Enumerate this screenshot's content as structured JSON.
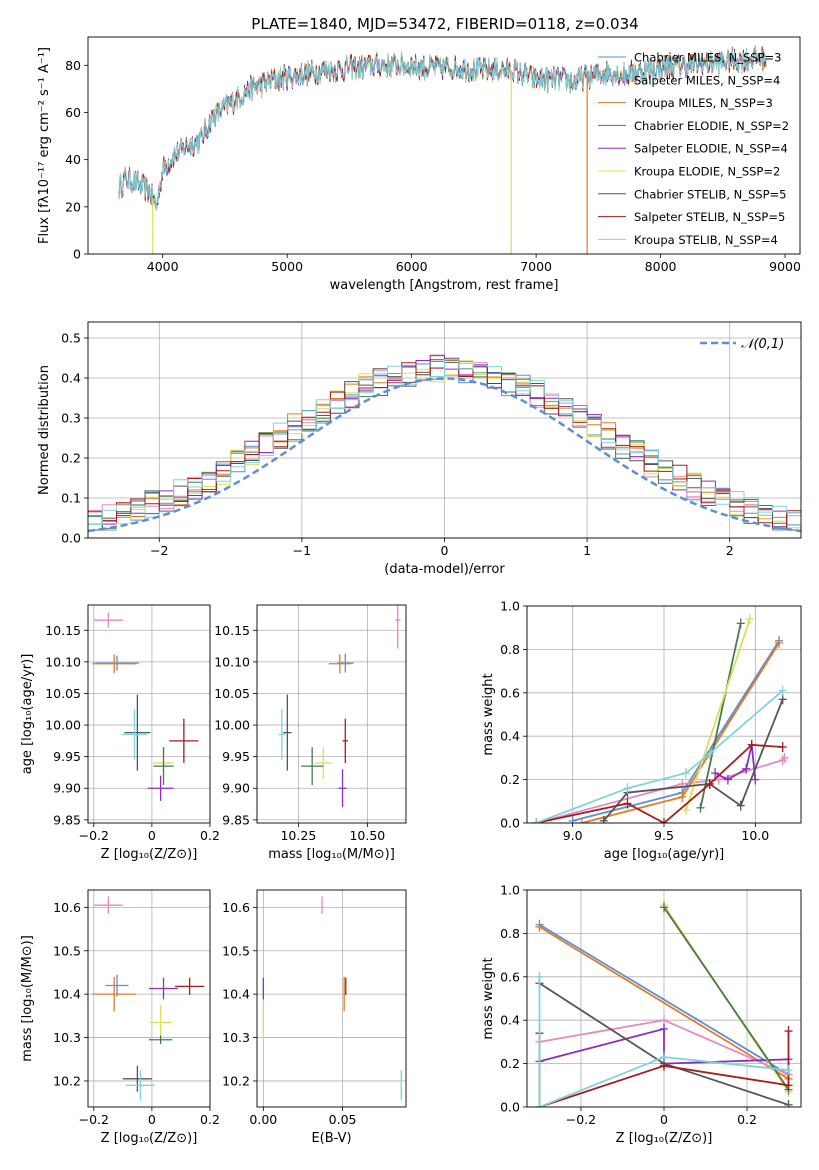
{
  "figure_title": "PLATE=1840, MJD=53472, FIBERID=0118, z=0.034",
  "colors": {
    "chabrier_miles": "#5b8fd6",
    "salpeter_miles": "#e58bbf",
    "kroupa_miles": "#c97a20",
    "chabrier_elodie": "#4a7a4a",
    "salpeter_elodie": "#8b2fbf",
    "kroupa_elodie": "#d8e055",
    "chabrier_stelib": "#555555",
    "salpeter_stelib": "#a51d1d",
    "kroupa_stelib": "#7fd4da",
    "dark_orange": "#e37b26",
    "gauss": "#5b8fd6"
  },
  "chart_data": [
    {
      "type": "line",
      "id": "spectrum",
      "title": "PLATE=1840, MJD=53472, FIBERID=0118, z=0.034",
      "xlabel": "wavelength [Angstrom, rest frame]",
      "ylabel": "Flux [fλ10⁻¹⁷ erg cm⁻² s⁻¹ A⁻¹]",
      "xlim": [
        3400,
        9120
      ],
      "ylim": [
        0,
        92
      ],
      "xticks": [
        4000,
        5000,
        6000,
        7000,
        8000,
        9000
      ],
      "yticks": [
        0,
        20,
        40,
        60,
        80
      ],
      "grid": false,
      "legend": "top-right",
      "legend_entries": [
        "Chabrier MILES, N_SSP=3",
        "Salpeter MILES, N_SSP=4",
        "Kroupa MILES, N_SSP=3",
        "Chabrier ELODIE, N_SSP=2",
        "Salpeter ELODIE, N_SSP=4",
        "Kroupa ELODIE, N_SSP=2",
        "Chabrier STELIB, N_SSP=5",
        "Salpeter STELIB, N_SSP=5",
        "Kroupa STELIB, N_SSP=4"
      ],
      "continuum": {
        "x": [
          3650,
          3700,
          3800,
          3900,
          3950,
          4000,
          4100,
          4200,
          4300,
          4400,
          4500,
          4600,
          4700,
          4800,
          4900,
          5000,
          5100,
          5200,
          5300,
          5400,
          5500,
          5600,
          5700,
          5800,
          5900,
          6000,
          6100,
          6200,
          6300,
          6400,
          6500,
          6600,
          6700,
          6800,
          6900,
          7000,
          7100,
          7200,
          7300,
          7400,
          7500,
          7600,
          7700,
          7800,
          7900,
          8000,
          8200,
          8400,
          8600,
          8800
        ],
        "y": [
          28,
          32,
          30,
          26,
          20,
          36,
          42,
          46,
          48,
          58,
          62,
          66,
          70,
          72,
          74,
          75,
          76,
          77,
          78,
          78,
          79,
          79,
          80,
          80,
          80,
          80,
          79,
          79,
          79,
          79,
          78,
          78,
          78,
          78,
          76,
          74,
          74,
          74,
          73,
          75,
          76,
          77,
          76,
          77,
          78,
          79,
          80,
          81,
          82,
          83
        ]
      },
      "spectrum_drops": [
        {
          "series": "Kroupa ELODIE, N_SSP=2",
          "x": 3920,
          "to": 0
        },
        {
          "series": "Kroupa ELODIE, N_SSP=2",
          "x": 6800,
          "to": 0
        },
        {
          "series": "Kroupa MILES, N_SSP=3",
          "x": 7410,
          "to": 0
        }
      ]
    },
    {
      "type": "step",
      "id": "residuals",
      "xlabel": "(data-model)/error",
      "ylabel": "Normed distribution",
      "xlim": [
        -2.5,
        2.5
      ],
      "ylim": [
        0,
        0.54
      ],
      "xticks": [
        -2,
        -1,
        0,
        1,
        2
      ],
      "yticks": [
        0.0,
        0.1,
        0.2,
        0.3,
        0.4,
        0.5
      ],
      "grid": true,
      "legend": "top-right",
      "reference_curve": {
        "name": "𝒩(0,1)",
        "mean": 0,
        "sigma": 1
      },
      "bin_width": 0.1
    },
    {
      "type": "scatter",
      "id": "age_vs_Z",
      "xlabel": "Z [log₁₀(Z/Z⊙)]",
      "ylabel": "age  [log₁₀(age/yr)]",
      "xlim": [
        -0.22,
        0.2
      ],
      "ylim": [
        9.845,
        10.19
      ],
      "xticks": [
        -0.2,
        0.0,
        0.2
      ],
      "yticks": [
        9.85,
        9.9,
        9.95,
        10.0,
        10.05,
        10.1,
        10.15
      ],
      "grid": true,
      "points": [
        {
          "c": "salpeter_miles",
          "x": -0.15,
          "xerr": 0.05,
          "y": 10.166,
          "yerr": 0.012
        },
        {
          "c": "chabrier_miles",
          "x": -0.12,
          "xerr": 0.075,
          "y": 10.098,
          "yerr": 0.012
        },
        {
          "c": "dark_orange",
          "x": -0.13,
          "xerr": 0.075,
          "y": 10.097,
          "yerr": 0.015
        },
        {
          "c": "chabrier_stelib",
          "x": -0.05,
          "xerr": 0.045,
          "y": 9.988,
          "yerr": 0.06
        },
        {
          "c": "kroupa_stelib",
          "x": -0.06,
          "xerr": 0.045,
          "y": 9.985,
          "yerr": 0.04
        },
        {
          "c": "salpeter_stelib",
          "x": 0.11,
          "xerr": 0.05,
          "y": 9.975,
          "yerr": 0.035
        },
        {
          "c": "kroupa_elodie",
          "x": 0.04,
          "xerr": 0.035,
          "y": 9.94,
          "yerr": 0.025
        },
        {
          "c": "salpeter_elodie",
          "x": 0.03,
          "xerr": 0.045,
          "y": 9.9,
          "yerr": 0.02
        },
        {
          "c": "chabrier_elodie",
          "x": 0.04,
          "xerr": 0.035,
          "y": 9.935,
          "yerr": 0.03
        }
      ]
    },
    {
      "type": "scatter",
      "id": "age_vs_mass",
      "xlabel": "mass [log₁₀(M/M⊙)]",
      "ylabel": "",
      "xlim": [
        10.1,
        10.64
      ],
      "ylim": [
        9.845,
        10.19
      ],
      "xticks": [
        10.25,
        10.5
      ],
      "yticks": [
        9.85,
        9.9,
        9.95,
        10.0,
        10.05,
        10.1,
        10.15
      ],
      "grid": true,
      "points": [
        {
          "c": "salpeter_miles",
          "x": 10.61,
          "xerr": 0.01,
          "y": 10.166,
          "yerr": 0.045
        },
        {
          "c": "chabrier_miles",
          "x": 10.42,
          "xerr": 0.03,
          "y": 10.098,
          "yerr": 0.015
        },
        {
          "c": "dark_orange",
          "x": 10.4,
          "xerr": 0.04,
          "y": 10.097,
          "yerr": 0.015
        },
        {
          "c": "chabrier_stelib",
          "x": 10.21,
          "xerr": 0.015,
          "y": 9.988,
          "yerr": 0.06
        },
        {
          "c": "kroupa_stelib",
          "x": 10.19,
          "xerr": 0.012,
          "y": 9.985,
          "yerr": 0.04
        },
        {
          "c": "salpeter_stelib",
          "x": 10.42,
          "xerr": 0.01,
          "y": 9.975,
          "yerr": 0.035
        },
        {
          "c": "kroupa_elodie",
          "x": 10.34,
          "xerr": 0.03,
          "y": 9.94,
          "yerr": 0.025
        },
        {
          "c": "salpeter_elodie",
          "x": 10.41,
          "xerr": 0.015,
          "y": 9.9,
          "yerr": 0.03
        },
        {
          "c": "chabrier_elodie",
          "x": 10.3,
          "xerr": 0.04,
          "y": 9.935,
          "yerr": 0.03
        }
      ]
    },
    {
      "type": "line",
      "id": "mass_weight_vs_age",
      "xlabel": "age  [log₁₀(age/yr)]",
      "ylabel": "mass weight",
      "xlim": [
        8.75,
        10.25
      ],
      "ylim": [
        0,
        1.0
      ],
      "xticks": [
        9.0,
        9.5,
        10.0
      ],
      "yticks": [
        0.0,
        0.2,
        0.4,
        0.6,
        0.8,
        1.0
      ],
      "grid": true,
      "series": [
        {
          "c": "chabrier_miles",
          "x": [
            9.0,
            9.6,
            10.13
          ],
          "y": [
            0.01,
            0.14,
            0.84
          ]
        },
        {
          "c": "salpeter_miles",
          "x": [
            8.8,
            9.6,
            9.8,
            10.15,
            10.16
          ],
          "y": [
            0.0,
            0.18,
            0.2,
            0.29,
            0.3
          ]
        },
        {
          "c": "dark_orange",
          "x": [
            9.05,
            9.6,
            10.13
          ],
          "y": [
            0.0,
            0.12,
            0.83
          ]
        },
        {
          "c": "chabrier_elodie",
          "x": [
            9.7,
            9.92
          ],
          "y": [
            0.07,
            0.92
          ]
        },
        {
          "c": "salpeter_elodie",
          "x": [
            9.78,
            9.85,
            9.95,
            9.98,
            10.0
          ],
          "y": [
            0.23,
            0.2,
            0.25,
            0.36,
            0.2
          ]
        },
        {
          "c": "kroupa_elodie",
          "x": [
            9.62,
            9.97
          ],
          "y": [
            0.06,
            0.94
          ]
        },
        {
          "c": "chabrier_stelib",
          "x": [
            9.17,
            9.3,
            9.75,
            9.92,
            10.15
          ],
          "y": [
            0.01,
            0.14,
            0.18,
            0.08,
            0.57
          ]
        },
        {
          "c": "salpeter_stelib",
          "x": [
            8.8,
            9.3,
            9.5,
            9.75,
            9.98,
            10.15
          ],
          "y": [
            0.0,
            0.09,
            0.0,
            0.18,
            0.36,
            0.35
          ]
        },
        {
          "c": "kroupa_stelib",
          "x": [
            8.8,
            9.3,
            9.62,
            9.75,
            10.15
          ],
          "y": [
            0.0,
            0.16,
            0.23,
            0.32,
            0.61
          ]
        }
      ]
    },
    {
      "type": "scatter",
      "id": "mass_vs_Z",
      "xlabel": "Z [log₁₀(Z/Z⊙)]",
      "ylabel": "mass [log₁₀(M/M⊙)]",
      "xlim": [
        -0.22,
        0.2
      ],
      "ylim": [
        10.14,
        10.64
      ],
      "xticks": [
        -0.2,
        0.0,
        0.2
      ],
      "yticks": [
        10.2,
        10.3,
        10.4,
        10.5,
        10.6
      ],
      "grid": true,
      "points": [
        {
          "c": "salpeter_miles",
          "x": -0.15,
          "xerr": 0.05,
          "y": 10.605,
          "yerr": 0.02
        },
        {
          "c": "chabrier_miles",
          "x": -0.12,
          "xerr": 0.04,
          "y": 10.42,
          "yerr": 0.025
        },
        {
          "c": "dark_orange",
          "x": -0.13,
          "xerr": 0.075,
          "y": 10.4,
          "yerr": 0.04
        },
        {
          "c": "salpeter_elodie",
          "x": 0.04,
          "xerr": 0.05,
          "y": 10.413,
          "yerr": 0.025
        },
        {
          "c": "salpeter_stelib",
          "x": 0.13,
          "xerr": 0.05,
          "y": 10.418,
          "yerr": 0.02
        },
        {
          "c": "kroupa_elodie",
          "x": 0.03,
          "xerr": 0.04,
          "y": 10.335,
          "yerr": 0.04
        },
        {
          "c": "chabrier_elodie",
          "x": 0.03,
          "xerr": 0.04,
          "y": 10.295,
          "yerr": 0.01
        },
        {
          "c": "chabrier_stelib",
          "x": -0.05,
          "xerr": 0.05,
          "y": 10.205,
          "yerr": 0.03
        },
        {
          "c": "kroupa_stelib",
          "x": -0.04,
          "xerr": 0.05,
          "y": 10.19,
          "yerr": 0.035
        }
      ]
    },
    {
      "type": "scatter",
      "id": "mass_vs_ebv",
      "xlabel": "E(B-V)",
      "ylabel": "",
      "xlim": [
        -0.004,
        0.09
      ],
      "ylim": [
        10.14,
        10.64
      ],
      "xticks": [
        0.0,
        0.05
      ],
      "yticks": [
        10.2,
        10.3,
        10.4,
        10.5,
        10.6
      ],
      "grid": true,
      "points": [
        {
          "c": "salpeter_miles",
          "x": 0.037,
          "xerr": 0.0,
          "y": 10.605,
          "yerr": 0.02
        },
        {
          "c": "salpeter_elodie",
          "x": 0.0,
          "xerr": 0.0,
          "y": 10.413,
          "yerr": 0.025
        },
        {
          "c": "dark_orange",
          "x": 0.051,
          "xerr": 0.0,
          "y": 10.4,
          "yerr": 0.04
        },
        {
          "c": "salpeter_stelib",
          "x": 0.052,
          "xerr": 0.0,
          "y": 10.418,
          "yerr": 0.02
        },
        {
          "c": "kroupa_elodie",
          "x": 0.0,
          "xerr": 0.0,
          "y": 10.335,
          "yerr": 0.04
        },
        {
          "c": "kroupa_stelib",
          "x": 0.087,
          "xerr": 0.0,
          "y": 10.19,
          "yerr": 0.035
        }
      ]
    },
    {
      "type": "line",
      "id": "mass_weight_vs_Z",
      "xlabel": "Z [log₁₀(Z/Z⊙)]",
      "ylabel": "mass weight",
      "xlim": [
        -0.33,
        0.33
      ],
      "ylim": [
        0,
        1.0
      ],
      "xticks": [
        -0.2,
        0.0,
        0.2
      ],
      "yticks": [
        0.0,
        0.2,
        0.4,
        0.6,
        0.8,
        1.0
      ],
      "grid": true,
      "series": [
        {
          "c": "chabrier_miles",
          "x": [
            -0.3,
            0.3
          ],
          "y": [
            0.84,
            0.15
          ]
        },
        {
          "c": "dark_orange",
          "x": [
            -0.3,
            0.3
          ],
          "y": [
            0.83,
            0.13
          ]
        },
        {
          "c": "salpeter_miles",
          "x": [
            -0.3,
            0.0,
            0.3
          ],
          "y": [
            0.3,
            0.4,
            0.15
          ]
        },
        {
          "c": "salpeter_elodie",
          "x": [
            -0.3,
            0.0,
            0.0,
            0.3
          ],
          "y": [
            0.21,
            0.36,
            0.2,
            0.22
          ]
        },
        {
          "c": "kroupa_elodie",
          "x": [
            0.0,
            0.3
          ],
          "y": [
            0.93,
            0.07
          ]
        },
        {
          "c": "chabrier_elodie",
          "x": [
            0.0,
            0.3
          ],
          "y": [
            0.92,
            0.08
          ]
        },
        {
          "c": "chabrier_stelib",
          "x": [
            -0.3,
            0.0,
            0.3
          ],
          "y": [
            0.57,
            0.2,
            0.01
          ]
        },
        {
          "c": "salpeter_stelib",
          "x": [
            -0.3,
            -0.3,
            0.0,
            0.3,
            0.3
          ],
          "y": [
            0.34,
            0.0,
            0.19,
            0.1,
            0.35
          ]
        },
        {
          "c": "kroupa_stelib",
          "x": [
            -0.3,
            -0.3,
            0.0,
            0.3
          ],
          "y": [
            0.6,
            0.0,
            0.23,
            0.17
          ]
        }
      ]
    }
  ]
}
